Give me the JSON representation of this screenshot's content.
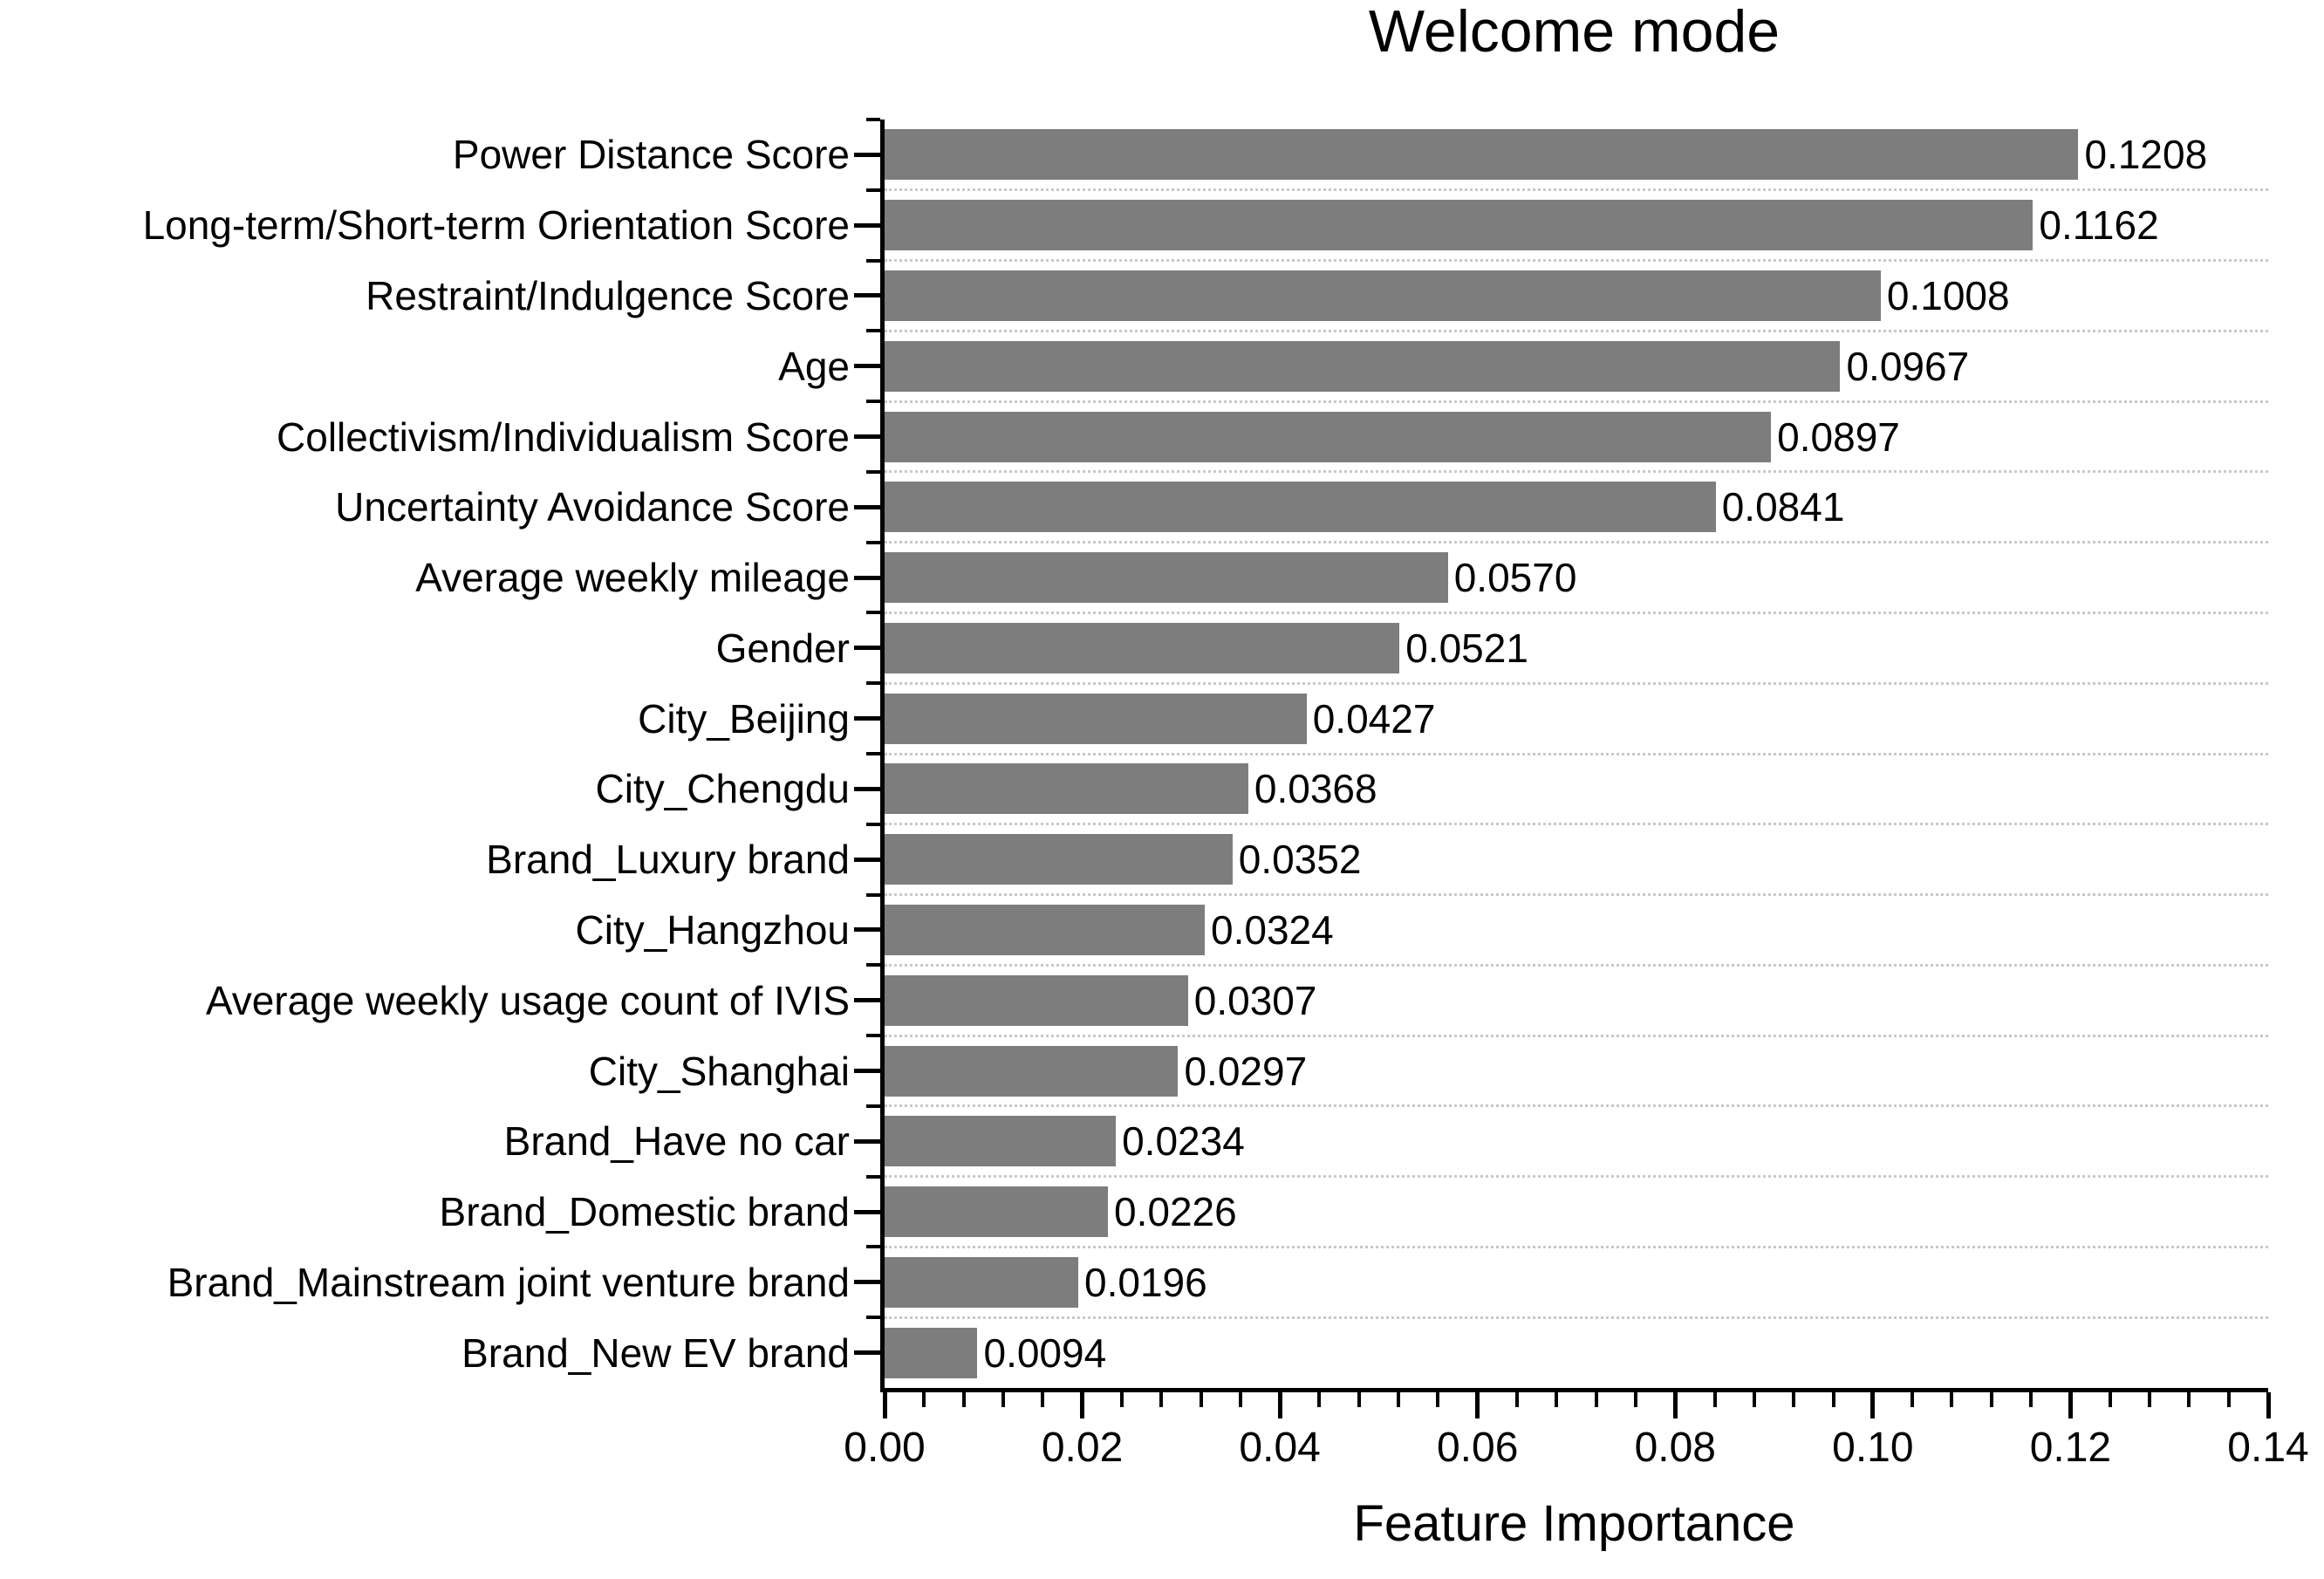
{
  "chart_data": {
    "type": "bar",
    "orientation": "horizontal",
    "title": "Welcome mode",
    "xlabel": "Feature Importance",
    "categories": [
      "Power Distance Score",
      "Long-term/Short-term Orientation Score",
      "Restraint/Indulgence Score",
      "Age",
      "Collectivism/Individualism Score",
      "Uncertainty Avoidance Score",
      "Average weekly mileage",
      "Gender",
      "City_Beijing",
      "City_Chengdu",
      "Brand_Luxury brand",
      "City_Hangzhou",
      "Average weekly usage count of IVIS",
      "City_Shanghai",
      "Brand_Have no car",
      "Brand_Domestic brand",
      "Brand_Mainstream joint venture brand",
      "Brand_New EV brand"
    ],
    "values": [
      0.1208,
      0.1162,
      0.1008,
      0.0967,
      0.0897,
      0.0841,
      0.057,
      0.0521,
      0.0427,
      0.0368,
      0.0352,
      0.0324,
      0.0307,
      0.0297,
      0.0234,
      0.0226,
      0.0196,
      0.0094
    ],
    "value_labels": [
      "0.1208",
      "0.1162",
      "0.1008",
      "0.0967",
      "0.0897",
      "0.0841",
      "0.0570",
      "0.0521",
      "0.0427",
      "0.0368",
      "0.0352",
      "0.0324",
      "0.0307",
      "0.0297",
      "0.0234",
      "0.0226",
      "0.0196",
      "0.0094"
    ],
    "xlim": [
      0,
      0.14
    ],
    "x_major_tick_step": 0.02,
    "x_minor_tick_step": 0.004,
    "x_tick_labels": [
      "0.00",
      "0.02",
      "0.04",
      "0.06",
      "0.08",
      "0.10",
      "0.12",
      "0.14"
    ],
    "grid": "horizontal-dotted",
    "legend": "none",
    "bar_color": "#7d7d7d",
    "grid_color": "#c8c8c8",
    "axis_color": "#000000"
  }
}
